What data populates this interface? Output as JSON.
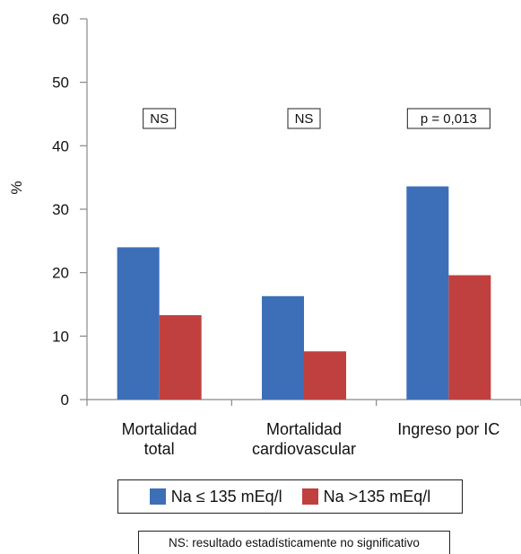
{
  "chart_data": {
    "type": "bar",
    "ylabel": "%",
    "ylim": [
      0,
      60
    ],
    "yticks": [
      0,
      10,
      20,
      30,
      40,
      50,
      60
    ],
    "categories": [
      "Mortalidad\ntotal",
      "Mortalidad\ncardiovascular",
      "Ingreso por IC"
    ],
    "series": [
      {
        "name": "Na ≤ 135 mEq/l",
        "values": [
          24,
          16.3,
          33.6
        ],
        "color": "#3d6fb8"
      },
      {
        "name": "Na >135 mEq/l",
        "values": [
          13.3,
          7.6,
          19.6
        ],
        "color": "#c0403f"
      }
    ],
    "annotations": [
      "NS",
      "NS",
      "p = 0,013"
    ],
    "grid": false,
    "legend_position": "bottom"
  },
  "footnote": "NS: resultado estadísticamente no significativo"
}
